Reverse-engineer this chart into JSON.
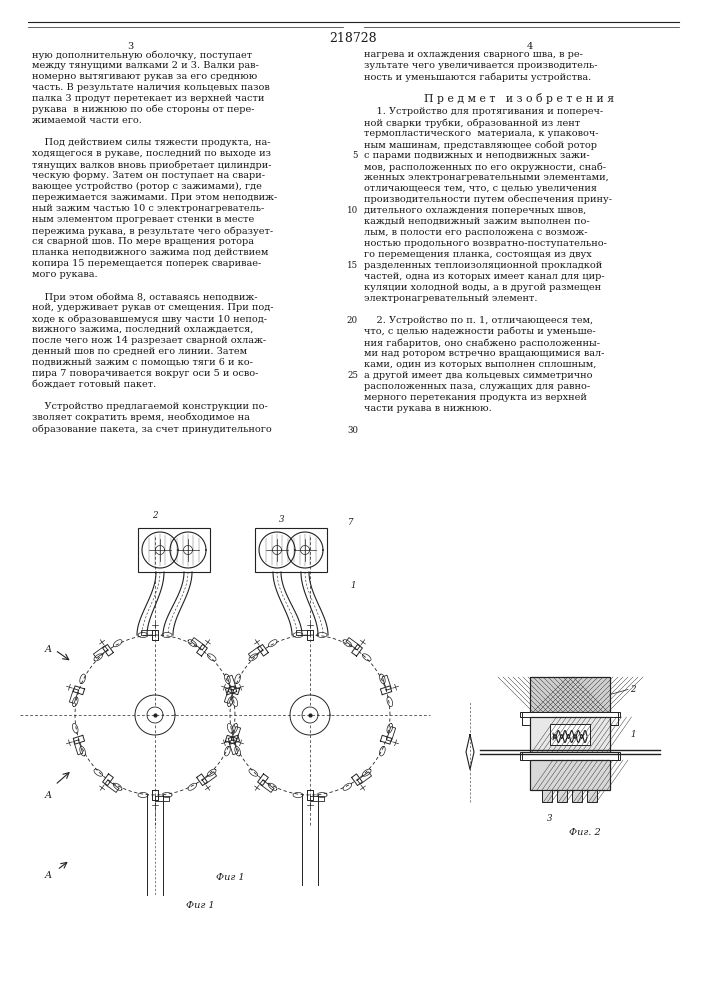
{
  "patent_number": "218728",
  "page_left_number": "3",
  "page_right_number": "4",
  "background_color": "#ffffff",
  "text_color": "#1a1a1a",
  "line_color": "#222222",
  "font_size_body": 7.0,
  "font_size_small": 6.2,
  "font_size_heading": 7.8,
  "font_size_patent": 9.0,
  "left_column_text": [
    "ную дополнительную оболочку, поступает",
    "между тянущими валками 2 и 3. Валки рав-",
    "номерно вытягивают рукав за его среднюю",
    "часть. В результате наличия кольцевых пазов",
    "палка 3 продут перетекает из верхней части",
    "рукава  в нижнюю по обе стороны от пере-",
    "жимаемой части его.",
    "",
    "    Под действием силы тяжести продукта, на-",
    "ходящегося в рукаве, последний по выходе из",
    "тянущих валков вновь приобретает цилиндри-",
    "ческую форму. Затем он поступает на свари-",
    "вающее устройство (ротор с зажимами), где",
    "пережимается зажимами. При этом неподвиж-",
    "ный зажим частью 10 с электронагреватель-",
    "ным элементом прогревает стенки в месте",
    "пережима рукава, в результате чего образует-",
    "ся сварной шов. По мере вращения ротора",
    "планка неподвижного зажима под действием",
    "копира 15 перемещается поперек сваривае-",
    "мого рукава.",
    "",
    "    При этом обойма 8, оставаясь неподвиж-",
    "ной, удерживает рукав от смещения. При под-",
    "ходе к образовавшемуся шву части 10 непод-",
    "вижного зажима, последний охлаждается,",
    "после чего нож 14 разрезает сварной охлаж-",
    "денный шов по средней его линии. Затем",
    "подвижный зажим с помощью тяги 6 и ко-",
    "пира 7 поворачивается вокруг оси 5 и осво-",
    "бождает готовый пакет.",
    "",
    "    Устройство предлагаемой конструкции по-",
    "зволяет сократить время, необходимое на",
    "образование пакета, за счет принудительного"
  ],
  "right_column_text_top": [
    "нагрева и охлаждения сварного шва, в ре-",
    "зультате чего увеличивается производитель-",
    "ность и уменьшаются габариты устройства."
  ],
  "right_column_heading": "П р е д м е т   и з о б р е т е н и я",
  "right_column_claims": [
    "    1. Устройство для протягивания и попереч-",
    "ной сварки трубки, образованной из лент",
    "термопластического  материала, к упаковоч-",
    "ным машинам, представляющее собой ротор",
    "с парами подвижных и неподвижных зажи-",
    "мов, расположенных по его окружности, снаб-",
    "женных электронагревательными элементами,",
    "отличающееся тем, что, с целью увеличения",
    "производительности путем обеспечения прину-",
    "дительного охлаждения поперечных швов,",
    "каждый неподвижный зажим выполнен по-",
    "лым, в полости его расположена с возмож-",
    "ностью продольного возвратно-поступательно-",
    "го перемещения планка, состоящая из двух",
    "разделенных теплоизоляционной прокладкой",
    "частей, одна из которых имеет канал для цир-",
    "куляции холодной воды, а в другой размещен",
    "электронагревательный элемент.",
    "",
    "    2. Устройство по п. 1, отличающееся тем,",
    "что, с целью надежности работы и уменьше-",
    "ния габаритов, оно снабжено расположенны-",
    "ми над ротором встречно вращающимися вал-",
    "ками, один из которых выполнен сплошным,",
    "а другой имеет два кольцевых симметрично",
    "расположенных паза, служащих для равно-",
    "мерного перетекания продукта из верхней",
    "части рукава в нижнюю."
  ],
  "fig1_caption": "Фиг 1",
  "fig2_caption": "Фиг. 2"
}
